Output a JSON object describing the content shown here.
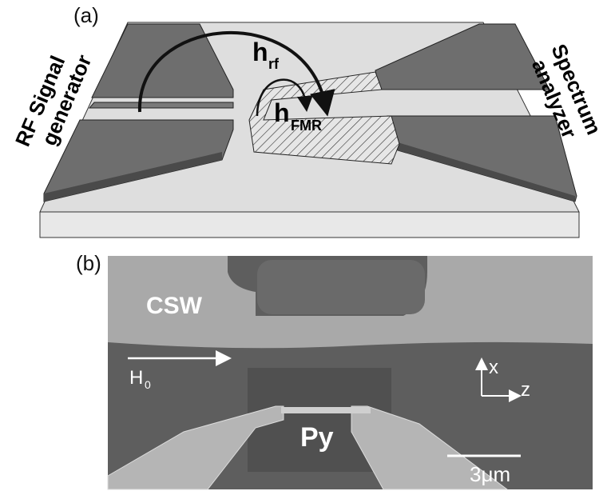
{
  "panel_a": {
    "label": "(a)",
    "rf_field": {
      "symbol": "h",
      "subscript": "rf"
    },
    "fmr_field": {
      "symbol": "h",
      "subscript": "FMR"
    },
    "source": {
      "line1": "RF Signal",
      "line2": "generator"
    },
    "detector": {
      "line1": "Spectrum",
      "line2": "analyzer"
    }
  },
  "panel_b": {
    "label": "(b)",
    "waveguide_label": "CSW",
    "field": {
      "symbol": "H",
      "subscript": "0"
    },
    "axes": {
      "x": "x",
      "z": "z"
    },
    "sample": "Py",
    "scale_bar": "3μm"
  }
}
